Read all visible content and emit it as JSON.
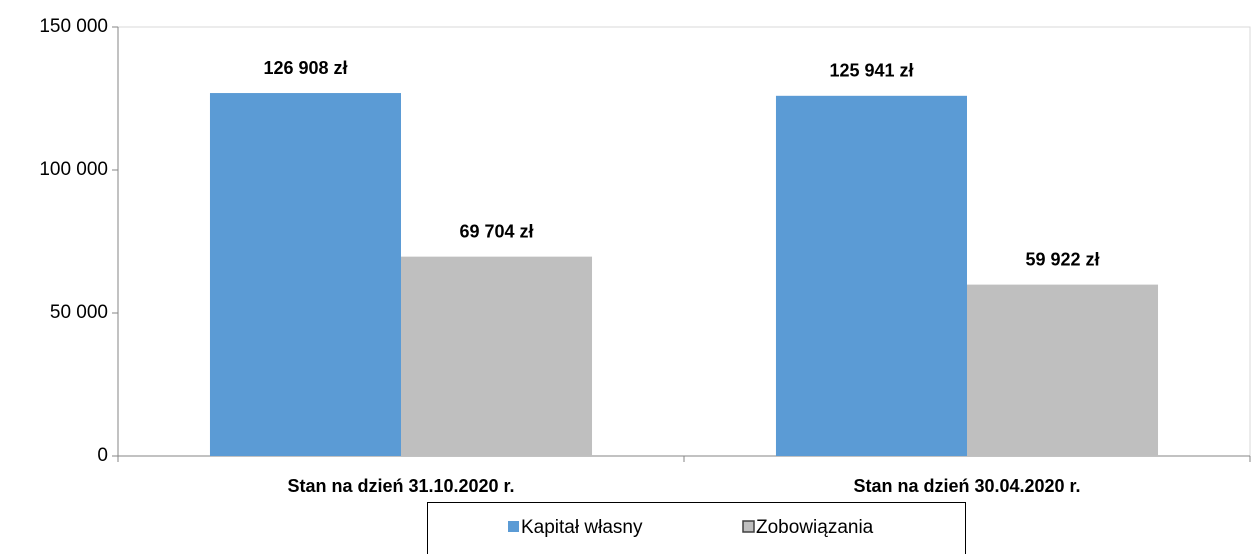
{
  "chart_data": {
    "type": "bar",
    "categories": [
      "Stan na dzień 31.10.2020 r.",
      "Stan na dzień 30.04.2020 r."
    ],
    "series": [
      {
        "name": "Kapitał własny",
        "color": "#5b9bd5",
        "values": [
          126908,
          125941
        ],
        "value_labels": [
          "126 908 zł",
          "125 941 zł"
        ]
      },
      {
        "name": "Zobowiązania",
        "color": "#bfbfbf",
        "values": [
          69704,
          59922
        ],
        "value_labels": [
          "69 704 zł",
          "59 922 zł"
        ]
      }
    ],
    "ylim": [
      0,
      150000
    ],
    "yticks": [
      0,
      {
        "value": 50000,
        "label": "50 000"
      },
      {
        "value": 100000,
        "label": "100 000"
      },
      {
        "value": 150000,
        "label": "150 000"
      }
    ],
    "grid": false,
    "legend": "bottom"
  }
}
